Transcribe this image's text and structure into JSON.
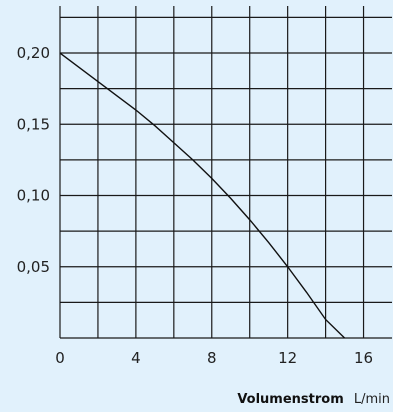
{
  "chart_data": {
    "type": "line",
    "title": "",
    "xlabel": "Volumenstrom",
    "xlabel_unit": "L/min",
    "ylabel": "",
    "x_ticks": [
      "0",
      "4",
      "8",
      "12",
      "16"
    ],
    "y_ticks": [
      "0,05",
      "0,10",
      "0,15",
      "0,20"
    ],
    "x_tick_values": [
      0,
      4,
      8,
      12,
      16
    ],
    "y_tick_values": [
      0.05,
      0.1,
      0.15,
      0.2
    ],
    "xlim": [
      0,
      17.5
    ],
    "ylim": [
      0,
      0.233
    ],
    "grid": true,
    "grid_x_step": 2,
    "grid_y_step": 0.025,
    "series": [
      {
        "x": [
          0,
          1,
          2,
          3,
          4,
          5,
          6,
          7,
          8,
          9,
          10,
          11,
          12,
          13,
          14,
          15
        ],
        "y": [
          0.2,
          0.19,
          0.18,
          0.17,
          0.16,
          0.149,
          0.137,
          0.125,
          0.112,
          0.098,
          0.083,
          0.067,
          0.05,
          0.032,
          0.013,
          0.0
        ]
      }
    ]
  }
}
